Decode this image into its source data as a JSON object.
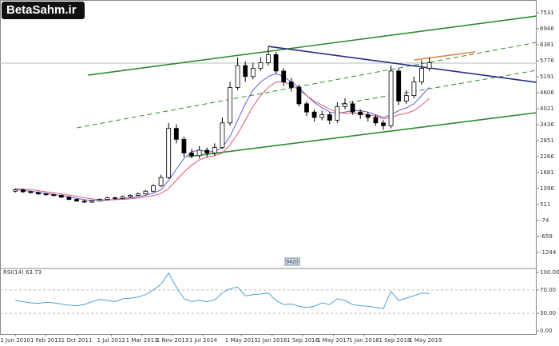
{
  "chart_data": {
    "type": "candlestick",
    "logo": "BetaSahm.ir",
    "marker_label": "9420",
    "x": [
      "2010-06",
      "2010-08",
      "2010-10",
      "2010-12",
      "2011-02",
      "2011-04",
      "2011-06",
      "2011-08",
      "2011-10",
      "2011-12",
      "2012-02",
      "2012-04",
      "2012-06",
      "2012-08",
      "2012-10",
      "2012-12",
      "2013-02",
      "2013-04",
      "2013-06",
      "2013-08",
      "2013-10",
      "2013-12",
      "2014-02",
      "2014-04",
      "2014-06",
      "2014-08",
      "2014-10",
      "2014-12",
      "2015-02",
      "2015-04",
      "2015-06",
      "2015-08",
      "2015-10",
      "2015-12",
      "2016-02",
      "2016-04",
      "2016-06",
      "2016-08",
      "2016-10",
      "2016-12",
      "2017-02",
      "2017-04",
      "2017-06",
      "2017-08",
      "2017-10",
      "2017-12",
      "2018-02",
      "2018-04",
      "2018-06",
      "2018-08",
      "2018-10",
      "2018-12",
      "2019-02",
      "2019-04",
      "2019-06"
    ],
    "open": [
      1000,
      1050,
      980,
      950,
      900,
      870,
      850,
      780,
      700,
      640,
      600,
      650,
      700,
      760,
      740,
      800,
      850,
      900,
      1000,
      1200,
      1500,
      3300,
      2900,
      2400,
      2300,
      2500,
      2400,
      2600,
      3500,
      4800,
      5600,
      5200,
      5500,
      5700,
      6000,
      5400,
      5000,
      4800,
      4200,
      3900,
      3700,
      3800,
      3600,
      4100,
      4200,
      3900,
      3800,
      3700,
      3500,
      3400,
      5400,
      4300,
      4500,
      5000,
      5500
    ],
    "high": [
      1100,
      1100,
      1020,
      990,
      940,
      910,
      890,
      820,
      740,
      680,
      690,
      740,
      800,
      800,
      840,
      890,
      950,
      1050,
      1260,
      1600,
      3500,
      3450,
      3000,
      2550,
      2650,
      2600,
      2750,
      3700,
      5000,
      5900,
      5750,
      5700,
      5900,
      6300,
      6100,
      5500,
      5150,
      4900,
      4300,
      4000,
      3950,
      3900,
      4250,
      4400,
      4300,
      4000,
      3900,
      3800,
      3600,
      5600,
      5500,
      4700,
      5200,
      5800,
      5900
    ],
    "low": [
      950,
      940,
      910,
      860,
      830,
      810,
      750,
      670,
      610,
      570,
      570,
      620,
      670,
      700,
      710,
      770,
      820,
      870,
      960,
      1150,
      1450,
      2750,
      2250,
      2200,
      2200,
      2250,
      2300,
      2550,
      3400,
      4700,
      5000,
      5100,
      5400,
      5600,
      5300,
      4850,
      4650,
      4100,
      3750,
      3550,
      3600,
      3450,
      3500,
      4000,
      3800,
      3650,
      3550,
      3400,
      3250,
      3300,
      4150,
      4200,
      4400,
      4900,
      5400
    ],
    "close": [
      1050,
      980,
      950,
      900,
      870,
      850,
      780,
      700,
      640,
      600,
      650,
      700,
      760,
      740,
      800,
      850,
      900,
      1000,
      1200,
      1500,
      3300,
      2900,
      2400,
      2300,
      2500,
      2400,
      2600,
      3500,
      4800,
      5600,
      5200,
      5500,
      5700,
      6000,
      5400,
      5000,
      4800,
      4200,
      3900,
      3700,
      3800,
      3600,
      4100,
      4200,
      3900,
      3800,
      3700,
      3500,
      3400,
      5400,
      4300,
      4500,
      5000,
      5500,
      5700
    ],
    "series": [
      {
        "color": "#5b5bd6",
        "values": [
          1050,
          1030,
          1000,
          960,
          920,
          880,
          840,
          790,
          740,
          690,
          660,
          650,
          670,
          700,
          730,
          760,
          800,
          850,
          930,
          1050,
          1400,
          1800,
          2200,
          2450,
          2500,
          2450,
          2450,
          2600,
          3000,
          3600,
          4200,
          4700,
          5000,
          5200,
          5300,
          5200,
          5000,
          4800,
          4500,
          4250,
          4050,
          3900,
          3850,
          3900,
          3950,
          3950,
          3900,
          3800,
          3700,
          3800,
          3950,
          4050,
          4200,
          4500,
          4800
        ]
      },
      {
        "color": "#e05a6a",
        "values": [
          1100,
          1080,
          1060,
          1020,
          980,
          940,
          900,
          860,
          810,
          760,
          720,
          690,
          680,
          690,
          700,
          720,
          750,
          790,
          840,
          920,
          1100,
          1400,
          1700,
          1950,
          2150,
          2250,
          2300,
          2400,
          2700,
          3100,
          3600,
          4100,
          4500,
          4800,
          5000,
          5000,
          4900,
          4700,
          4500,
          4300,
          4150,
          4000,
          3900,
          3850,
          3850,
          3850,
          3800,
          3750,
          3650,
          3700,
          3800,
          3850,
          3950,
          4150,
          4400
        ]
      }
    ],
    "trendlines": [
      {
        "color": "#2e8b2e",
        "dash": false,
        "x": [
          "2012-01",
          "2021-10"
        ],
        "y": [
          5249,
          7414
        ]
      },
      {
        "color": "#2e8b2e",
        "dash": false,
        "x": [
          "2014-03",
          "2021-10"
        ],
        "y": [
          2266,
          3875
        ]
      },
      {
        "color": "#2e8b2e",
        "dash": true,
        "x": [
          "2011-10",
          "2021-10"
        ],
        "y": [
          3319,
          6449
        ]
      },
      {
        "color": "#2e8b2e",
        "dash": true,
        "x": [
          "2017-07",
          "2021-10"
        ],
        "y": [
          4197,
          5425
        ]
      },
      {
        "color": "#2a2a8a",
        "dash": false,
        "x": [
          "2015-12",
          "2021-10"
        ],
        "y": [
          6302,
          4986
        ]
      },
      {
        "color": "#e08a50",
        "dash": false,
        "x": [
          "2019-02",
          "2020-06"
        ],
        "y": [
          5805,
          6100
        ]
      }
    ],
    "price_line": 5688,
    "xlim": [
      "2010-02",
      "2021-10"
    ],
    "ylim": [
      -1800,
      8000
    ],
    "yticks": [
      7531,
      6946,
      6361,
      5776,
      5191,
      4606,
      4021,
      3436,
      2851,
      2266,
      1681,
      1096,
      511,
      -74,
      -659,
      -1244
    ],
    "xticks": [
      "1 Jun 2010",
      "1 Feb 2011",
      "1 Oct 2011",
      "1 Jul 2012",
      "1 Mar 2013",
      "1 Nov 2013",
      "1 Jul 2014",
      "1 May 2015",
      "1 Jan 2016",
      "1 Sep 2016",
      "1 May 2017",
      "1 Jan 2018",
      "1 Sep 2018",
      "1 May 2019"
    ],
    "rsi": {
      "label": "RSI(14) 63.73",
      "color": "#4aa3d8",
      "values": [
        52,
        50,
        48,
        47,
        49,
        48,
        46,
        44,
        43,
        45,
        50,
        54,
        52,
        50,
        55,
        56,
        58,
        62,
        70,
        80,
        99,
        75,
        55,
        50,
        52,
        50,
        53,
        65,
        72,
        75,
        60,
        62,
        63,
        65,
        52,
        45,
        46,
        42,
        40,
        42,
        48,
        45,
        55,
        52,
        45,
        43,
        42,
        40,
        38,
        68,
        52,
        56,
        60,
        65,
        63.73
      ],
      "ylim": [
        -5.5,
        105.5
      ],
      "yticks": [
        {
          "value": 100,
          "label": "100.00"
        },
        {
          "value": 70,
          "label": "70.00"
        },
        {
          "value": 30,
          "label": "30.00"
        },
        {
          "value": 0,
          "label": "0.00"
        }
      ],
      "levels": [
        70,
        30
      ]
    }
  }
}
